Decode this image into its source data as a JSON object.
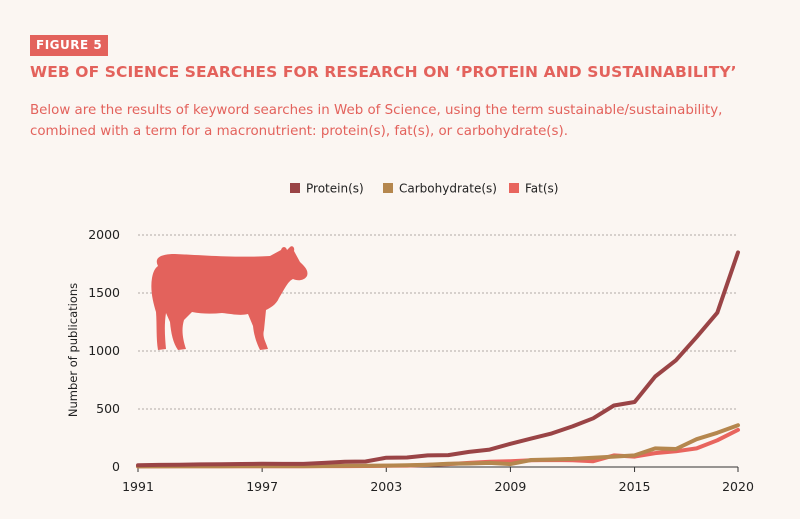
{
  "figure_label": "FIGURE 5",
  "title": "WEB OF SCIENCE SEARCHES FOR RESEARCH ON ‘PROTEIN AND SUSTAINABILITY’",
  "subtitle": "Below are the results of keyword searches in Web of Science, using the term sustainable/sustainability, combined with a term for a macronutrient: protein(s), fat(s), or carbohydrate(s).",
  "colors": {
    "accent": "#e3625c",
    "protein": "#9a4446",
    "carbohydrate": "#b5874e",
    "fat": "#e8655e",
    "cow": "#e3625c"
  },
  "icon": "cow-silhouette-icon",
  "chart_data": {
    "type": "line",
    "ylabel": "Number of publications",
    "xlabel": "",
    "xlim": [
      1991,
      2020
    ],
    "ylim": [
      0,
      2000
    ],
    "grid": true,
    "legend_position": "top-center",
    "x_ticks": [
      1991,
      1997,
      2003,
      2009,
      2015,
      2020
    ],
    "y_ticks": [
      0,
      500,
      1000,
      1500,
      2000
    ],
    "x": [
      1991,
      1992,
      1993,
      1994,
      1995,
      1996,
      1997,
      1998,
      1999,
      2000,
      2001,
      2002,
      2003,
      2004,
      2005,
      2006,
      2007,
      2008,
      2009,
      2010,
      2011,
      2012,
      2013,
      2014,
      2015,
      2016,
      2017,
      2018,
      2019,
      2020
    ],
    "series": [
      {
        "name": "Protein(s)",
        "color": "#9a4446",
        "values": [
          15,
          18,
          20,
          22,
          24,
          26,
          28,
          27,
          27,
          35,
          45,
          47,
          80,
          82,
          100,
          103,
          130,
          150,
          200,
          245,
          290,
          350,
          420,
          530,
          560,
          780,
          920,
          1120,
          1330,
          1850
        ]
      },
      {
        "name": "Carbohydrate(s)",
        "color": "#b5874e",
        "values": [
          5,
          6,
          6,
          7,
          7,
          8,
          8,
          8,
          8,
          9,
          10,
          10,
          12,
          15,
          20,
          28,
          30,
          35,
          25,
          60,
          65,
          70,
          80,
          90,
          100,
          160,
          155,
          240,
          295,
          360
        ]
      },
      {
        "name": "Fat(s)",
        "color": "#e8655e",
        "values": [
          5,
          5,
          6,
          6,
          6,
          7,
          7,
          7,
          7,
          8,
          8,
          9,
          10,
          12,
          18,
          25,
          35,
          45,
          50,
          58,
          60,
          58,
          50,
          100,
          90,
          120,
          135,
          160,
          230,
          320
        ]
      }
    ]
  }
}
